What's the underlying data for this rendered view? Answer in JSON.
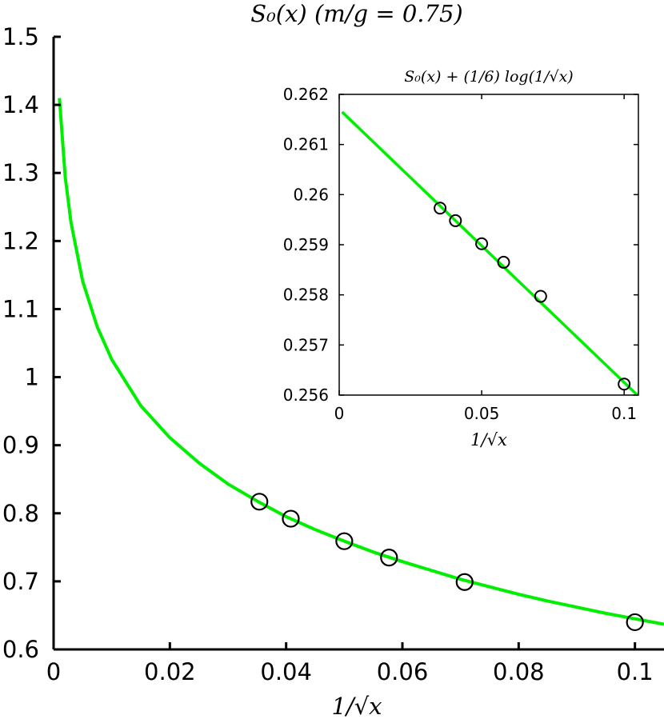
{
  "chart_data": [
    {
      "type": "line",
      "title": "S₀(x) (m/g = 0.75)",
      "xlabel": "1/√x",
      "ylabel": "",
      "xlim": [
        0,
        0.105
      ],
      "ylim": [
        0.6,
        1.5
      ],
      "xticks": [
        0,
        0.02,
        0.04,
        0.06,
        0.08,
        0.1
      ],
      "xtick_labels": [
        "0",
        "0.02",
        "0.04",
        "0.06",
        "0.08",
        "0.1"
      ],
      "yticks": [
        0.6,
        0.7,
        0.8,
        0.9,
        1.0,
        1.1,
        1.2,
        1.3,
        1.4,
        1.5
      ],
      "ytick_labels": [
        "0.6",
        "0.7",
        "0.8",
        "0.9",
        "1",
        "1.1",
        "1.2",
        "1.3",
        "1.4",
        "1.5"
      ],
      "grid": false,
      "series": [
        {
          "kind": "line",
          "color": "#00ee00",
          "x": [
            0.001,
            0.002,
            0.003,
            0.005,
            0.0075,
            0.01,
            0.015,
            0.02,
            0.025,
            0.03,
            0.035,
            0.04,
            0.045,
            0.05,
            0.055,
            0.06,
            0.065,
            0.07,
            0.075,
            0.08,
            0.085,
            0.09,
            0.095,
            0.1,
            0.105
          ],
          "y": [
            1.41,
            1.294,
            1.227,
            1.141,
            1.074,
            1.026,
            0.958,
            0.911,
            0.874,
            0.843,
            0.818,
            0.795,
            0.776,
            0.759,
            0.743,
            0.729,
            0.716,
            0.703,
            0.692,
            0.681,
            0.671,
            0.662,
            0.653,
            0.645,
            0.637
          ]
        },
        {
          "kind": "scatter",
          "marker": "open-circle",
          "color": "#000000",
          "x": [
            0.0354,
            0.0408,
            0.05,
            0.0577,
            0.0707,
            0.1
          ],
          "y": [
            0.817,
            0.792,
            0.759,
            0.735,
            0.699,
            0.64
          ]
        }
      ]
    },
    {
      "type": "line",
      "title": "S₀(x) + (1/6) log(1/√x)",
      "xlabel": "1/√x",
      "ylabel": "",
      "xlim": [
        0,
        0.105
      ],
      "ylim": [
        0.256,
        0.262
      ],
      "xticks": [
        0,
        0.05,
        0.1
      ],
      "xtick_labels": [
        "0",
        "0.05",
        "0.1"
      ],
      "yticks": [
        0.256,
        0.257,
        0.258,
        0.259,
        0.26,
        0.261,
        0.262
      ],
      "ytick_labels": [
        "0.256",
        "0.257",
        "0.258",
        "0.259",
        "0.26",
        "0.261",
        "0.262"
      ],
      "grid": false,
      "series": [
        {
          "kind": "line",
          "color": "#00ee00",
          "x": [
            0.001,
            0.105
          ],
          "y": [
            0.26165,
            0.25598
          ]
        },
        {
          "kind": "scatter",
          "marker": "open-circle",
          "color": "#000000",
          "x": [
            0.0354,
            0.0408,
            0.05,
            0.0577,
            0.0707,
            0.1
          ],
          "y": [
            0.25973,
            0.25948,
            0.25902,
            0.25865,
            0.25797,
            0.25622
          ]
        }
      ]
    }
  ]
}
